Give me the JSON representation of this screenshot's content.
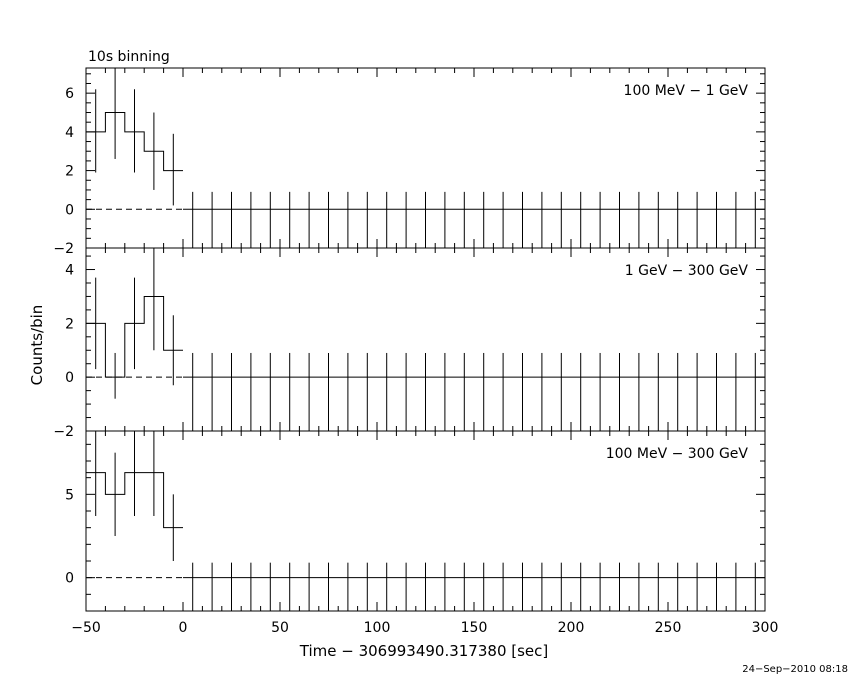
{
  "chart_data": {
    "type": "line",
    "title": "10s binning",
    "xlabel": "Time − 306993490.317380 [sec]",
    "ylabel": "Counts/bin",
    "footer": "24−Sep−2010 08:18",
    "xlim": [
      -50,
      300
    ],
    "x_ticks": [
      -50,
      0,
      50,
      100,
      150,
      200,
      250,
      300
    ],
    "x_bin_edges": [
      -50,
      -40,
      -30,
      -20,
      -10,
      0,
      10,
      20,
      30,
      40,
      50,
      60,
      70,
      80,
      90,
      100,
      110,
      120,
      130,
      140,
      150,
      160,
      170,
      180,
      190,
      200,
      210,
      220,
      230,
      240,
      250,
      260,
      270,
      280,
      290,
      300
    ],
    "panels": [
      {
        "label": "100 MeV − 1 GeV",
        "ylim": [
          -2,
          7.3
        ],
        "y_ticks": [
          -2,
          0,
          2,
          4,
          6
        ],
        "values": [
          4,
          5,
          4,
          3,
          2
        ],
        "err_low": [
          1.9,
          2.6,
          1.9,
          1.0,
          0.2
        ],
        "err_high": [
          6.2,
          7.3,
          6.2,
          5.0,
          3.9
        ],
        "upper": 0.9
      },
      {
        "label": "1 GeV − 300 GeV",
        "ylim": [
          -2,
          4.8
        ],
        "y_ticks": [
          -2,
          0,
          2,
          4
        ],
        "values": [
          2,
          0,
          2,
          3,
          1
        ],
        "err_low": [
          0.3,
          -0.8,
          0.3,
          1.0,
          -0.3
        ],
        "err_high": [
          3.7,
          0.9,
          3.7,
          4.8,
          2.3
        ],
        "upper": 0.9
      },
      {
        "label": "100 MeV − 300 GeV",
        "ylim": [
          -2,
          8.8
        ],
        "y_ticks": [
          0,
          5
        ],
        "values": [
          6.3,
          5,
          6.3,
          6.3,
          3
        ],
        "err_low": [
          3.7,
          2.5,
          3.7,
          3.7,
          1.0
        ],
        "err_high": [
          8.8,
          7.5,
          8.8,
          8.8,
          5.0
        ],
        "upper": 0.9
      }
    ]
  }
}
